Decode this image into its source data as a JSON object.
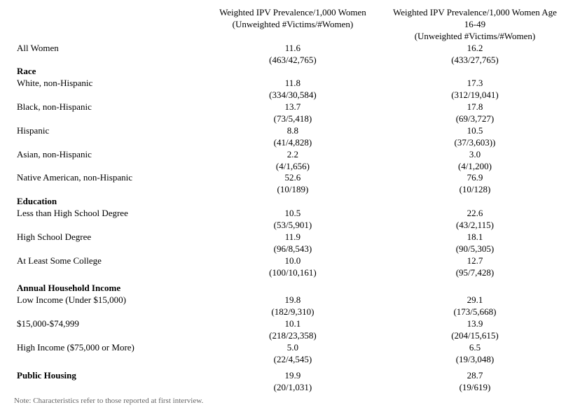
{
  "headers": {
    "col1_line1": "Weighted IPV Prevalence/1,000 Women",
    "col1_line2": "(Unweighted #Victims/#Women)",
    "col2_line1": "Weighted IPV Prevalence/1,000 Women  Age 16-49",
    "col2_line2": "(Unweighted #Victims/#Women)"
  },
  "rows": {
    "all_women": {
      "label": "All Women",
      "v1": "11.6",
      "n1": "(463/42,765)",
      "v2": "16.2",
      "n2": "(433/27,765)"
    }
  },
  "sections": {
    "race": {
      "title": "Race",
      "items": [
        {
          "label": "White, non-Hispanic",
          "v1": "11.8",
          "n1": "(334/30,584)",
          "v2": "17.3",
          "n2": "(312/19,041)"
        },
        {
          "label": "Black, non-Hispanic",
          "v1": "13.7",
          "n1": "(73/5,418)",
          "v2": "17.8",
          "n2": "(69/3,727)"
        },
        {
          "label": "Hispanic",
          "v1": "8.8",
          "n1": "(41/4,828)",
          "v2": "10.5",
          "n2": "(37/3,603))"
        },
        {
          "label": "Asian, non-Hispanic",
          "v1": "2.2",
          "n1": "(4/1,656)",
          "v2": "3.0",
          "n2": "(4/1,200)"
        },
        {
          "label": "Native American, non-Hispanic",
          "v1": "52.6",
          "n1": "(10/189)",
          "v2": "76.9",
          "n2": "(10/128)"
        }
      ]
    },
    "education": {
      "title": "Education",
      "items": [
        {
          "label": "Less than High School Degree",
          "v1": "10.5",
          "n1": "(53/5,901)",
          "v2": "22.6",
          "n2": "(43/2,115)"
        },
        {
          "label": "High School Degree",
          "v1": "11.9",
          "n1": "(96/8,543)",
          "v2": "18.1",
          "n2": "(90/5,305)"
        },
        {
          "label": "At Least Some College",
          "v1": "10.0",
          "n1": "(100/10,161)",
          "v2": "12.7",
          "n2": "(95/7,428)"
        }
      ]
    },
    "income": {
      "title": "Annual Household Income",
      "items": [
        {
          "label": "Low Income (Under $15,000)",
          "v1": "19.8",
          "n1": "(182/9,310)",
          "v2": "29.1",
          "n2": "(173/5,668)"
        },
        {
          "label": "$15,000-$74,999",
          "v1": "10.1",
          "n1": "(218/23,358)",
          "v2": "13.9",
          "n2": "(204/15,615)"
        },
        {
          "label": "High Income ($75,000 or More)",
          "v1": "5.0",
          "n1": "(22/4,545)",
          "v2": "6.5",
          "n2": "(19/3,048)"
        }
      ]
    },
    "housing": {
      "title": "Public Housing",
      "v1": "19.9",
      "n1": "(20/1,031)",
      "v2": "28.7",
      "n2": "(19/619)"
    }
  },
  "note": "Note: Characteristics refer to those reported at first interview."
}
